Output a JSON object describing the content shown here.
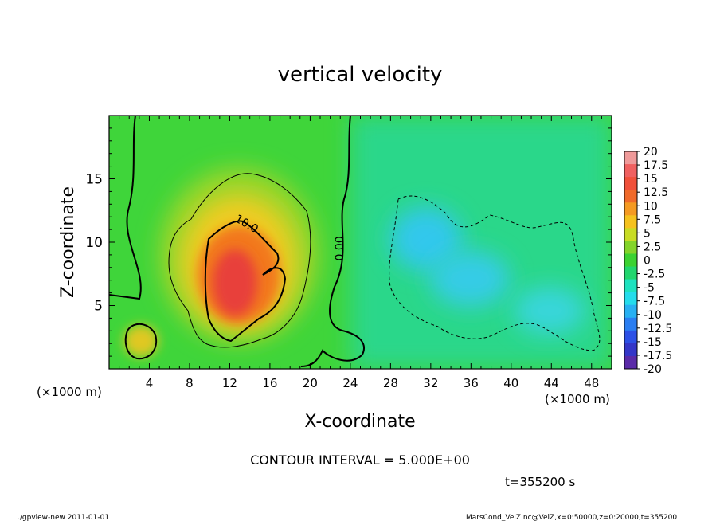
{
  "chart_data": {
    "type": "heatmap",
    "title": "vertical velocity",
    "xlabel": "X-coordinate",
    "ylabel": "Z-coordinate",
    "x_unit_left": "(×1000 m)",
    "x_unit_right": "(×1000 m)",
    "xlim": [
      0,
      50
    ],
    "ylim": [
      0,
      20
    ],
    "x_ticks": [
      4,
      8,
      12,
      16,
      20,
      24,
      28,
      32,
      36,
      40,
      44,
      48
    ],
    "y_ticks": [
      5,
      10,
      15
    ],
    "contour_interval_text": "CONTOUR INTERVAL = 5.000E+00",
    "time_text": "t=355200 s",
    "contour_labels": [
      {
        "text": "10.0",
        "x": 13.5,
        "z": 11.2
      },
      {
        "text": "0.00",
        "x": 23.3,
        "z": 9.5
      }
    ],
    "colorbar": {
      "labels": [
        "20",
        "17.5",
        "15",
        "12.5",
        "10",
        "7.5",
        "5",
        "2.5",
        "0",
        "-2.5",
        "-5",
        "-7.5",
        "-10",
        "-12.5",
        "-15",
        "-17.5",
        "-20"
      ],
      "colors": [
        "#ef9a9a",
        "#f06060",
        "#f0503a",
        "#f06a2a",
        "#f59a22",
        "#f5c21e",
        "#c8dc24",
        "#84d42a",
        "#3cd232",
        "#22d66e",
        "#1ee2c0",
        "#24dcec",
        "#28b0f2",
        "#2a7ef2",
        "#2c50e6",
        "#3436c8",
        "#5a2aa8"
      ]
    },
    "features": [
      {
        "name": "updraft core",
        "x": 13,
        "z": 7.5,
        "peak": 13.5
      },
      {
        "name": "weak updraft",
        "x": 3,
        "z": 2.2,
        "peak": 6
      },
      {
        "name": "downdraft",
        "x": 31.5,
        "z": 10.3,
        "peak": -7
      },
      {
        "name": "downdraft",
        "x": 36.5,
        "z": 6.5,
        "peak": -6
      }
    ]
  },
  "footer": {
    "left": "./gpview-new   2011-01-01",
    "right": "MarsCond_VelZ.nc@VelZ,x=0:50000,z=0:20000,t=355200"
  }
}
